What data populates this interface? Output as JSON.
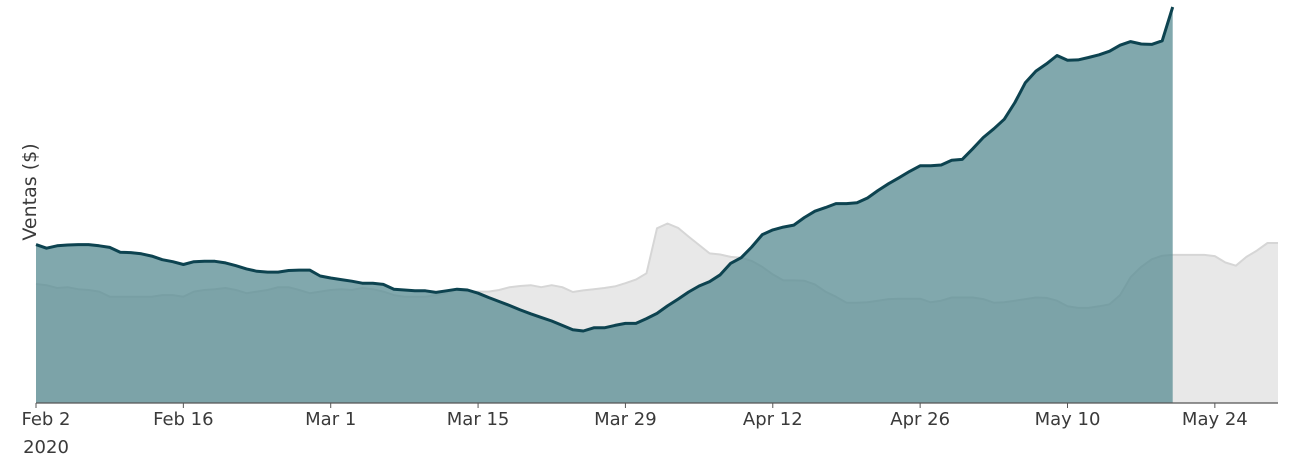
{
  "chart_data": {
    "type": "area",
    "title": "",
    "ylabel": "Ventas ($)",
    "xlabel": "",
    "x_start": "2020-02-02",
    "x_end": "2020-05-30",
    "ylim": [
      0,
      100
    ],
    "grid": false,
    "legend": "none",
    "x_ticks": [
      {
        "date": "2020-02-02",
        "label": "Feb 2",
        "sublabel": "2020"
      },
      {
        "date": "2020-02-16",
        "label": "Feb 16"
      },
      {
        "date": "2020-03-01",
        "label": "Mar 1"
      },
      {
        "date": "2020-03-15",
        "label": "Mar 15"
      },
      {
        "date": "2020-03-29",
        "label": "Mar 29"
      },
      {
        "date": "2020-04-12",
        "label": "Apr 12"
      },
      {
        "date": "2020-04-26",
        "label": "Apr 26"
      },
      {
        "date": "2020-05-10",
        "label": "May 10"
      },
      {
        "date": "2020-05-24",
        "label": "May 24"
      }
    ],
    "series": [
      {
        "color": "#e8e8e8",
        "stroke": "#d6d6d6",
        "points": [
          [
            "2020-02-02",
            29.9
          ],
          [
            "2020-02-03",
            29.6
          ],
          [
            "2020-02-04",
            28.9
          ],
          [
            "2020-02-05",
            29.1
          ],
          [
            "2020-02-06",
            28.6
          ],
          [
            "2020-02-07",
            28.4
          ],
          [
            "2020-02-08",
            28.0
          ],
          [
            "2020-02-09",
            26.7
          ],
          [
            "2020-02-10",
            26.7
          ],
          [
            "2020-02-11",
            26.7
          ],
          [
            "2020-02-12",
            26.7
          ],
          [
            "2020-02-13",
            26.7
          ],
          [
            "2020-02-14",
            27.1
          ],
          [
            "2020-02-15",
            27.1
          ],
          [
            "2020-02-16",
            26.7
          ],
          [
            "2020-02-17",
            28.0
          ],
          [
            "2020-02-18",
            28.4
          ],
          [
            "2020-02-19",
            28.6
          ],
          [
            "2020-02-20",
            28.9
          ],
          [
            "2020-02-21",
            28.4
          ],
          [
            "2020-02-22",
            27.6
          ],
          [
            "2020-02-23",
            28.0
          ],
          [
            "2020-02-24",
            28.4
          ],
          [
            "2020-02-25",
            29.1
          ],
          [
            "2020-02-26",
            29.1
          ],
          [
            "2020-02-27",
            28.4
          ],
          [
            "2020-02-28",
            27.6
          ],
          [
            "2020-02-29",
            28.0
          ],
          [
            "2020-03-01",
            28.4
          ],
          [
            "2020-03-02",
            28.6
          ],
          [
            "2020-03-03",
            28.4
          ],
          [
            "2020-03-04",
            28.9
          ],
          [
            "2020-03-05",
            28.6
          ],
          [
            "2020-03-06",
            28.0
          ],
          [
            "2020-03-07",
            27.1
          ],
          [
            "2020-03-08",
            26.7
          ],
          [
            "2020-03-09",
            26.7
          ],
          [
            "2020-03-10",
            26.7
          ],
          [
            "2020-03-11",
            27.1
          ],
          [
            "2020-03-12",
            27.6
          ],
          [
            "2020-03-13",
            28.4
          ],
          [
            "2020-03-14",
            28.0
          ],
          [
            "2020-03-15",
            28.0
          ],
          [
            "2020-03-16",
            28.0
          ],
          [
            "2020-03-17",
            28.4
          ],
          [
            "2020-03-18",
            29.1
          ],
          [
            "2020-03-19",
            29.4
          ],
          [
            "2020-03-20",
            29.6
          ],
          [
            "2020-03-21",
            29.1
          ],
          [
            "2020-03-22",
            29.6
          ],
          [
            "2020-03-23",
            29.1
          ],
          [
            "2020-03-24",
            27.9
          ],
          [
            "2020-03-25",
            28.3
          ],
          [
            "2020-03-26",
            28.6
          ],
          [
            "2020-03-27",
            28.9
          ],
          [
            "2020-03-28",
            29.3
          ],
          [
            "2020-03-29",
            30.1
          ],
          [
            "2020-03-30",
            31.0
          ],
          [
            "2020-03-31",
            32.6
          ],
          [
            "2020-04-01",
            43.9
          ],
          [
            "2020-04-02",
            45.1
          ],
          [
            "2020-04-03",
            44.0
          ],
          [
            "2020-04-04",
            41.8
          ],
          [
            "2020-04-05",
            39.7
          ],
          [
            "2020-04-06",
            37.6
          ],
          [
            "2020-04-07",
            37.3
          ],
          [
            "2020-04-08",
            36.7
          ],
          [
            "2020-04-09",
            36.5
          ],
          [
            "2020-04-10",
            35.7
          ],
          [
            "2020-04-11",
            34.2
          ],
          [
            "2020-04-12",
            32.3
          ],
          [
            "2020-04-13",
            30.8
          ],
          [
            "2020-04-14",
            30.8
          ],
          [
            "2020-04-15",
            30.7
          ],
          [
            "2020-04-16",
            29.8
          ],
          [
            "2020-04-17",
            28.0
          ],
          [
            "2020-04-18",
            26.7
          ],
          [
            "2020-04-19",
            25.2
          ],
          [
            "2020-04-20",
            25.2
          ],
          [
            "2020-04-21",
            25.3
          ],
          [
            "2020-04-22",
            25.7
          ],
          [
            "2020-04-23",
            26.1
          ],
          [
            "2020-04-24",
            26.2
          ],
          [
            "2020-04-25",
            26.2
          ],
          [
            "2020-04-26",
            26.2
          ],
          [
            "2020-04-27",
            25.3
          ],
          [
            "2020-04-28",
            25.7
          ],
          [
            "2020-04-29",
            26.5
          ],
          [
            "2020-04-30",
            26.5
          ],
          [
            "2020-05-01",
            26.5
          ],
          [
            "2020-05-02",
            26.1
          ],
          [
            "2020-05-03",
            25.2
          ],
          [
            "2020-05-04",
            25.3
          ],
          [
            "2020-05-05",
            25.7
          ],
          [
            "2020-05-06",
            26.1
          ],
          [
            "2020-05-07",
            26.5
          ],
          [
            "2020-05-08",
            26.4
          ],
          [
            "2020-05-09",
            25.7
          ],
          [
            "2020-05-10",
            24.3
          ],
          [
            "2020-05-11",
            23.9
          ],
          [
            "2020-05-12",
            23.9
          ],
          [
            "2020-05-13",
            24.3
          ],
          [
            "2020-05-14",
            24.8
          ],
          [
            "2020-05-15",
            27.1
          ],
          [
            "2020-05-16",
            31.6
          ],
          [
            "2020-05-17",
            34.2
          ],
          [
            "2020-05-18",
            36.1
          ],
          [
            "2020-05-19",
            37.0
          ],
          [
            "2020-05-20",
            37.2
          ],
          [
            "2020-05-21",
            37.2
          ],
          [
            "2020-05-22",
            37.2
          ],
          [
            "2020-05-23",
            37.2
          ],
          [
            "2020-05-24",
            36.9
          ],
          [
            "2020-05-25",
            35.3
          ],
          [
            "2020-05-26",
            34.5
          ],
          [
            "2020-05-27",
            36.7
          ],
          [
            "2020-05-28",
            38.3
          ],
          [
            "2020-05-29",
            40.2
          ],
          [
            "2020-05-30",
            40.2
          ]
        ]
      },
      {
        "color": "#5e8f96",
        "stroke": "#0d4350",
        "points": [
          [
            "2020-02-02",
            39.8
          ],
          [
            "2020-02-03",
            38.9
          ],
          [
            "2020-02-04",
            39.5
          ],
          [
            "2020-02-05",
            39.7
          ],
          [
            "2020-02-06",
            39.8
          ],
          [
            "2020-02-07",
            39.8
          ],
          [
            "2020-02-08",
            39.5
          ],
          [
            "2020-02-09",
            39.1
          ],
          [
            "2020-02-10",
            37.9
          ],
          [
            "2020-02-11",
            37.8
          ],
          [
            "2020-02-12",
            37.5
          ],
          [
            "2020-02-13",
            36.9
          ],
          [
            "2020-02-14",
            36.0
          ],
          [
            "2020-02-15",
            35.5
          ],
          [
            "2020-02-16",
            34.8
          ],
          [
            "2020-02-17",
            35.5
          ],
          [
            "2020-02-18",
            35.6
          ],
          [
            "2020-02-19",
            35.6
          ],
          [
            "2020-02-20",
            35.2
          ],
          [
            "2020-02-21",
            34.5
          ],
          [
            "2020-02-22",
            33.7
          ],
          [
            "2020-02-23",
            33.1
          ],
          [
            "2020-02-24",
            32.9
          ],
          [
            "2020-02-25",
            32.9
          ],
          [
            "2020-02-26",
            33.3
          ],
          [
            "2020-02-27",
            33.4
          ],
          [
            "2020-02-28",
            33.4
          ],
          [
            "2020-02-29",
            31.9
          ],
          [
            "2020-03-01",
            31.4
          ],
          [
            "2020-03-02",
            31.0
          ],
          [
            "2020-03-03",
            30.6
          ],
          [
            "2020-03-04",
            30.1
          ],
          [
            "2020-03-05",
            30.1
          ],
          [
            "2020-03-06",
            29.8
          ],
          [
            "2020-03-07",
            28.6
          ],
          [
            "2020-03-08",
            28.4
          ],
          [
            "2020-03-09",
            28.2
          ],
          [
            "2020-03-10",
            28.2
          ],
          [
            "2020-03-11",
            27.8
          ],
          [
            "2020-03-12",
            28.2
          ],
          [
            "2020-03-13",
            28.6
          ],
          [
            "2020-03-14",
            28.4
          ],
          [
            "2020-03-15",
            27.6
          ],
          [
            "2020-03-16",
            26.5
          ],
          [
            "2020-03-17",
            25.5
          ],
          [
            "2020-03-18",
            24.5
          ],
          [
            "2020-03-19",
            23.4
          ],
          [
            "2020-03-20",
            22.4
          ],
          [
            "2020-03-21",
            21.5
          ],
          [
            "2020-03-22",
            20.6
          ],
          [
            "2020-03-23",
            19.5
          ],
          [
            "2020-03-24",
            18.4
          ],
          [
            "2020-03-25",
            18.1
          ],
          [
            "2020-03-26",
            18.9
          ],
          [
            "2020-03-27",
            18.9
          ],
          [
            "2020-03-28",
            19.5
          ],
          [
            "2020-03-29",
            20.0
          ],
          [
            "2020-03-30",
            20.0
          ],
          [
            "2020-03-31",
            21.2
          ],
          [
            "2020-04-01",
            22.5
          ],
          [
            "2020-04-02",
            24.4
          ],
          [
            "2020-04-03",
            26.1
          ],
          [
            "2020-04-04",
            27.9
          ],
          [
            "2020-04-05",
            29.4
          ],
          [
            "2020-04-06",
            30.5
          ],
          [
            "2020-04-07",
            32.2
          ],
          [
            "2020-04-08",
            35.1
          ],
          [
            "2020-04-09",
            36.5
          ],
          [
            "2020-04-10",
            39.2
          ],
          [
            "2020-04-11",
            42.3
          ],
          [
            "2020-04-12",
            43.5
          ],
          [
            "2020-04-13",
            44.2
          ],
          [
            "2020-04-14",
            44.7
          ],
          [
            "2020-04-15",
            46.6
          ],
          [
            "2020-04-16",
            48.2
          ],
          [
            "2020-04-17",
            49.1
          ],
          [
            "2020-04-18",
            50.1
          ],
          [
            "2020-04-19",
            50.1
          ],
          [
            "2020-04-20",
            50.3
          ],
          [
            "2020-04-21",
            51.5
          ],
          [
            "2020-04-22",
            53.4
          ],
          [
            "2020-04-23",
            55.1
          ],
          [
            "2020-04-24",
            56.6
          ],
          [
            "2020-04-25",
            58.2
          ],
          [
            "2020-04-26",
            59.6
          ],
          [
            "2020-04-27",
            59.6
          ],
          [
            "2020-04-28",
            59.8
          ],
          [
            "2020-04-29",
            61.0
          ],
          [
            "2020-04-30",
            61.2
          ],
          [
            "2020-05-01",
            63.9
          ],
          [
            "2020-05-02",
            66.7
          ],
          [
            "2020-05-03",
            68.9
          ],
          [
            "2020-05-04",
            71.3
          ],
          [
            "2020-05-05",
            75.5
          ],
          [
            "2020-05-06",
            80.5
          ],
          [
            "2020-05-07",
            83.4
          ],
          [
            "2020-05-08",
            85.2
          ],
          [
            "2020-05-09",
            87.3
          ],
          [
            "2020-05-10",
            86.1
          ],
          [
            "2020-05-11",
            86.2
          ],
          [
            "2020-05-12",
            86.8
          ],
          [
            "2020-05-13",
            87.5
          ],
          [
            "2020-05-14",
            88.4
          ],
          [
            "2020-05-15",
            89.9
          ],
          [
            "2020-05-16",
            90.8
          ],
          [
            "2020-05-17",
            90.2
          ],
          [
            "2020-05-18",
            90.1
          ],
          [
            "2020-05-19",
            91.0
          ],
          [
            "2020-05-20",
            99.5
          ]
        ]
      }
    ]
  }
}
